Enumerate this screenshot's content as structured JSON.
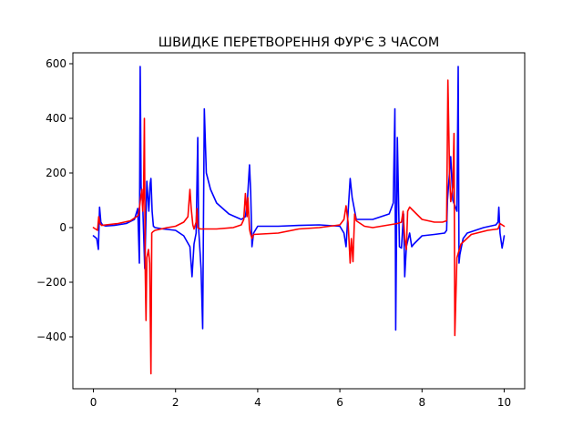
{
  "chart_data": {
    "type": "line",
    "title": "ШВИДКЕ ПЕРЕТВОРЕННЯ ФУР'Є З ЧАСОМ",
    "xlabel": "",
    "ylabel": "",
    "xlim": [
      -0.5,
      10.5
    ],
    "ylim": [
      -590,
      640
    ],
    "xticks": [
      0,
      2,
      4,
      6,
      8,
      10
    ],
    "yticks": [
      -400,
      -200,
      0,
      200,
      400,
      600
    ],
    "grid": false,
    "legend": "none",
    "series": [
      {
        "color": "#0000ff",
        "x": [
          0,
          0.08,
          0.12,
          0.15,
          0.18,
          0.22,
          0.3,
          0.5,
          0.8,
          1.0,
          1.08,
          1.12,
          1.14,
          1.16,
          1.2,
          1.25,
          1.3,
          1.35,
          1.38,
          1.4,
          1.43,
          1.46,
          1.5,
          1.7,
          2.0,
          2.2,
          2.35,
          2.4,
          2.45,
          2.5,
          2.54,
          2.56,
          2.58,
          2.62,
          2.66,
          2.7,
          2.75,
          2.85,
          3.0,
          3.3,
          3.6,
          3.7,
          3.75,
          3.8,
          3.83,
          3.86,
          3.9,
          4.0,
          4.5,
          5.0,
          5.5,
          6.0,
          6.1,
          6.15,
          6.2,
          6.25,
          6.3,
          6.4,
          6.8,
          7.2,
          7.3,
          7.34,
          7.36,
          7.4,
          7.45,
          7.5,
          7.55,
          7.58,
          7.62,
          7.7,
          7.72,
          7.75,
          7.8,
          8.0,
          8.3,
          8.55,
          8.6,
          8.62,
          8.7,
          8.75,
          8.85,
          8.88,
          8.9,
          8.92,
          8.96,
          9.0,
          9.1,
          9.5,
          9.8,
          9.85,
          9.87,
          9.9,
          9.95,
          10.0
        ],
        "y": [
          -30,
          -40,
          -80,
          75,
          20,
          10,
          6,
          8,
          15,
          30,
          70,
          -130,
          590,
          150,
          80,
          -150,
          170,
          60,
          160,
          180,
          60,
          5,
          0,
          -5,
          -10,
          -30,
          -70,
          -180,
          -60,
          -20,
          330,
          0,
          -50,
          -150,
          -370,
          435,
          200,
          140,
          90,
          50,
          30,
          40,
          100,
          230,
          130,
          -70,
          -20,
          5,
          5,
          8,
          10,
          5,
          -20,
          -70,
          55,
          180,
          110,
          30,
          30,
          50,
          90,
          435,
          -375,
          330,
          -70,
          -75,
          50,
          -180,
          -70,
          -20,
          -40,
          -70,
          -60,
          -30,
          -25,
          -20,
          -10,
          100,
          260,
          100,
          60,
          590,
          -130,
          -100,
          -70,
          -40,
          -20,
          0,
          10,
          20,
          75,
          -20,
          -75,
          -30
        ]
      },
      {
        "color": "#ff0000",
        "x": [
          0,
          0.05,
          0.1,
          0.13,
          0.16,
          0.2,
          0.3,
          0.6,
          0.9,
          1.1,
          1.15,
          1.18,
          1.2,
          1.22,
          1.24,
          1.26,
          1.28,
          1.3,
          1.34,
          1.37,
          1.4,
          1.42,
          1.45,
          1.5,
          1.8,
          2.0,
          2.2,
          2.3,
          2.35,
          2.38,
          2.42,
          2.45,
          2.5,
          2.52,
          2.54,
          2.6,
          2.7,
          3.0,
          3.4,
          3.6,
          3.66,
          3.7,
          3.74,
          3.76,
          3.8,
          3.82,
          3.86,
          3.9,
          4.5,
          5.0,
          5.5,
          6.0,
          6.1,
          6.15,
          6.2,
          6.25,
          6.28,
          6.3,
          6.32,
          6.36,
          6.4,
          6.6,
          6.8,
          7.2,
          7.4,
          7.5,
          7.54,
          7.58,
          7.62,
          7.65,
          7.7,
          8.0,
          8.3,
          8.5,
          8.6,
          8.63,
          8.67,
          8.7,
          8.75,
          8.78,
          8.8,
          8.85,
          8.95,
          9.2,
          9.6,
          9.85,
          9.9,
          9.95,
          10.0
        ],
        "y": [
          0,
          -5,
          -10,
          40,
          15,
          8,
          10,
          15,
          25,
          45,
          110,
          140,
          60,
          120,
          400,
          -150,
          -340,
          -110,
          -80,
          -130,
          -535,
          -20,
          -15,
          -10,
          0,
          5,
          20,
          40,
          140,
          70,
          10,
          -5,
          20,
          70,
          0,
          -5,
          -5,
          -5,
          0,
          10,
          30,
          125,
          40,
          110,
          -5,
          -20,
          -40,
          -25,
          -20,
          -5,
          0,
          10,
          30,
          80,
          20,
          -130,
          -40,
          -80,
          -125,
          50,
          25,
          5,
          0,
          10,
          15,
          20,
          60,
          -40,
          -80,
          60,
          75,
          30,
          20,
          20,
          25,
          540,
          200,
          95,
          150,
          345,
          -395,
          -110,
          -60,
          -25,
          -10,
          -5,
          15,
          10,
          5
        ]
      }
    ]
  }
}
